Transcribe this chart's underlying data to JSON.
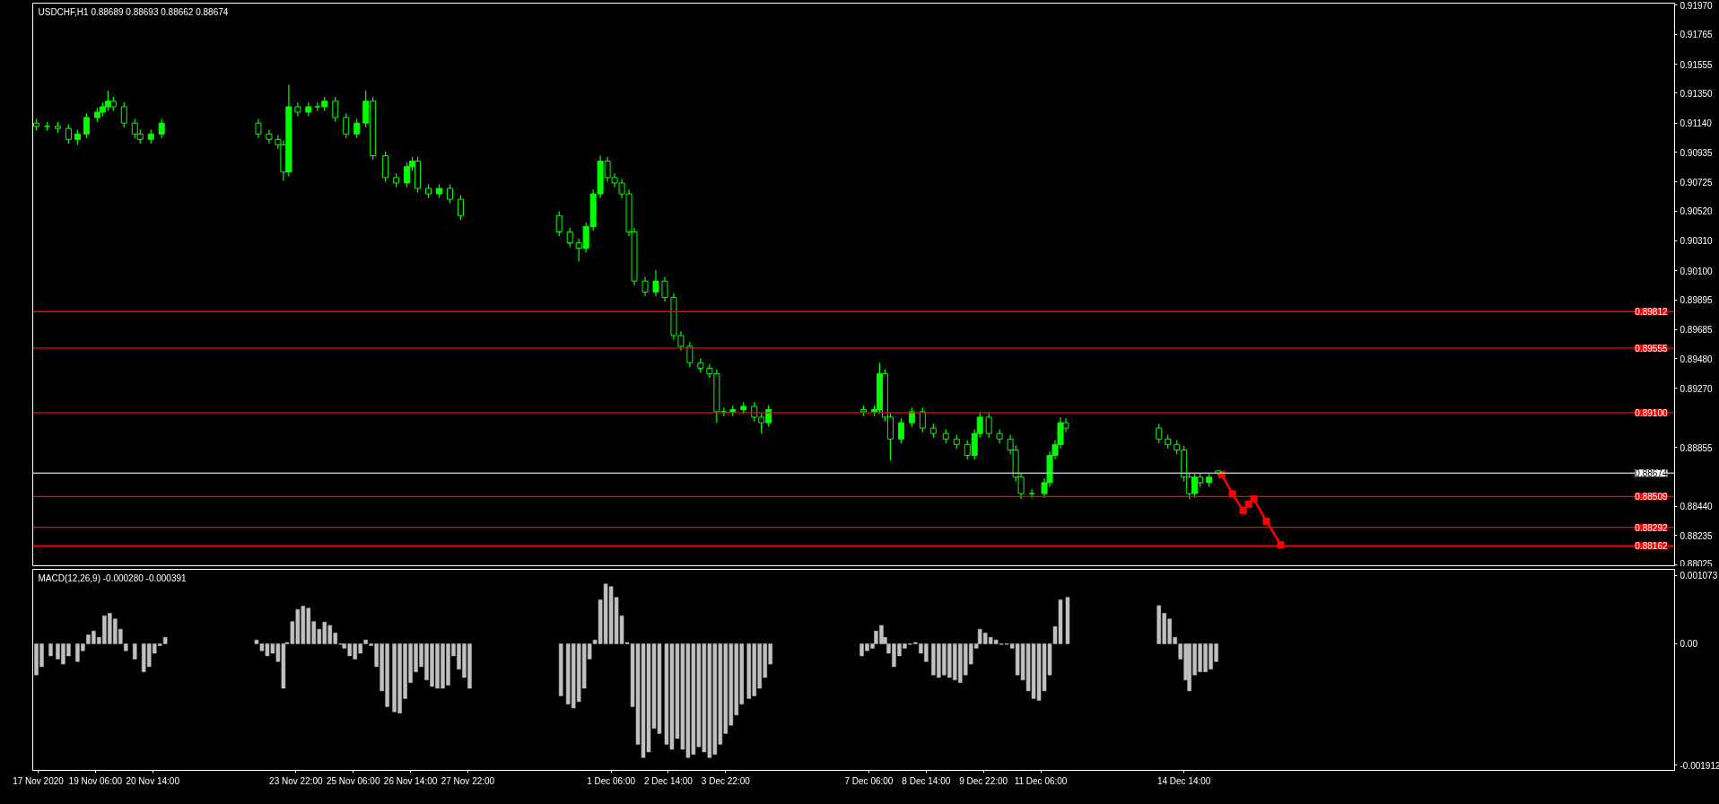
{
  "chart_data": [
    {
      "type": "candlestick",
      "title": "USDCHF,H1  0.88689 0.88693 0.88662 0.88674",
      "color": "#00ff00",
      "tick_labels": "y",
      "xlim": [
        "2020-11-17T19:00",
        "2020-12-26T00:00"
      ],
      "ylim": [
        0.88015,
        0.91985
      ],
      "yticks": [
        {
          "value": 0.9197,
          "label": "0.91970"
        },
        {
          "value": 0.91765,
          "label": "0.91765"
        },
        {
          "value": 0.91555,
          "label": "0.91555"
        },
        {
          "value": 0.9135,
          "label": "0.91350"
        },
        {
          "value": 0.9114,
          "label": "0.91140"
        },
        {
          "value": 0.90935,
          "label": "0.90935"
        },
        {
          "value": 0.90725,
          "label": "0.90725"
        },
        {
          "value": 0.9052,
          "label": "0.90520"
        },
        {
          "value": 0.9031,
          "label": "0.90310"
        },
        {
          "value": 0.901,
          "label": "0.90100"
        },
        {
          "value": 0.89895,
          "label": "0.89895"
        },
        {
          "value": 0.89685,
          "label": "0.89685"
        },
        {
          "value": 0.8948,
          "label": "0.89480"
        },
        {
          "value": 0.8927,
          "label": "0.89270"
        },
        {
          "value": 0.88855,
          "label": "0.88855"
        },
        {
          "value": 0.8844,
          "label": "0.88440"
        },
        {
          "value": 0.88235,
          "label": "0.88235"
        },
        {
          "value": 0.88025,
          "label": "0.88025"
        }
      ],
      "ref_lines": [
        {
          "axis": "y",
          "value": 0.89812,
          "label": "0.89812",
          "color": "#ff0000"
        },
        {
          "axis": "y",
          "value": 0.89555,
          "label": "0.89555",
          "color": "#ff0000"
        },
        {
          "axis": "y",
          "value": 0.891,
          "label": "0.89100",
          "color": "#ff0000"
        },
        {
          "axis": "y",
          "value": 0.88674,
          "label": "0.88674",
          "color": "#b0b8c0"
        },
        {
          "axis": "y",
          "value": 0.88509,
          "label": "0.88509",
          "color": "#ff0000"
        },
        {
          "axis": "y",
          "value": 0.88292,
          "label": "0.88292",
          "color": "#ff0000"
        },
        {
          "axis": "y",
          "value": 0.88162,
          "label": "0.88162",
          "color": "#ff0000"
        }
      ],
      "x": [
        "2020-11-17T21:00",
        "2020-11-18T03:00",
        "2020-11-18T09:00",
        "2020-11-18T15:00",
        "2020-11-18T20:00",
        "2020-11-19T01:00",
        "2020-11-19T07:00",
        "2020-11-19T10:00",
        "2020-11-19T13:00",
        "2020-11-19T16:00",
        "2020-11-19T22:00",
        "2020-11-20T04:00",
        "2020-11-20T07:00",
        "2020-11-20T13:00",
        "2020-11-20T19:00",
        "2020-11-23T01:00",
        "2020-11-23T07:00",
        "2020-11-23T12:00",
        "2020-11-23T15:00",
        "2020-11-23T18:00",
        "2020-11-23T23:00",
        "2020-11-24T05:00",
        "2020-11-24T10:00",
        "2020-11-24T14:00",
        "2020-11-24T20:00",
        "2020-11-25T02:00",
        "2020-11-25T08:00",
        "2020-11-25T13:00",
        "2020-11-25T17:00",
        "2020-11-26T00:00",
        "2020-11-26T06:00",
        "2020-11-26T12:00",
        "2020-11-26T15:00",
        "2020-11-26T18:00",
        "2020-11-27T00:00",
        "2020-11-27T06:00",
        "2020-11-27T12:00",
        "2020-11-27T18:00",
        "2020-11-30T01:00",
        "2020-11-30T07:00",
        "2020-11-30T12:00",
        "2020-11-30T16:00",
        "2020-11-30T20:00",
        "2020-12-01T00:00",
        "2020-12-01T04:00",
        "2020-12-01T08:00",
        "2020-12-01T12:00",
        "2020-12-01T16:00",
        "2020-12-01T19:00",
        "2020-12-02T01:00",
        "2020-12-02T07:00",
        "2020-12-02T12:00",
        "2020-12-02T17:00",
        "2020-12-02T21:00",
        "2020-12-03T02:00",
        "2020-12-03T08:00",
        "2020-12-03T13:00",
        "2020-12-03T17:00",
        "2020-12-03T21:00",
        "2020-12-04T02:00",
        "2020-12-04T08:00",
        "2020-12-04T14:00",
        "2020-12-04T18:00",
        "2020-12-04T22:00",
        "2020-12-07T03:00",
        "2020-12-07T09:00",
        "2020-12-07T12:00",
        "2020-12-07T15:00",
        "2020-12-07T18:00",
        "2020-12-08T00:00",
        "2020-12-08T06:00",
        "2020-12-08T12:00",
        "2020-12-08T18:00",
        "2020-12-09T01:00",
        "2020-12-09T07:00",
        "2020-12-09T13:00",
        "2020-12-09T17:00",
        "2020-12-09T20:00",
        "2020-12-10T01:00",
        "2020-12-10T07:00",
        "2020-12-10T13:00",
        "2020-12-10T16:00",
        "2020-12-10T19:00",
        "2020-12-11T01:00",
        "2020-12-11T08:00",
        "2020-12-11T11:00",
        "2020-12-11T14:00",
        "2020-12-11T17:00",
        "2020-12-11T20:00",
        "2020-12-14T00:00",
        "2020-12-14T05:00",
        "2020-12-14T10:00",
        "2020-12-14T14:00",
        "2020-12-14T17:00",
        "2020-12-14T20:00",
        "2020-12-14T23:00",
        "2020-12-15T04:00",
        "2020-12-15T09:00"
      ],
      "ohlc": [
        [
          0.9114,
          0.9117,
          0.91087,
          0.91117
        ],
        [
          0.91117,
          0.91147,
          0.91087,
          0.91117
        ],
        [
          0.91117,
          0.91147,
          0.91072,
          0.91102
        ],
        [
          0.91102,
          0.91132,
          0.90995,
          0.91025
        ],
        [
          0.91025,
          0.91093,
          0.90987,
          0.91063
        ],
        [
          0.91063,
          0.91209,
          0.91033,
          0.91179
        ],
        [
          0.91179,
          0.91247,
          0.91149,
          0.91217
        ],
        [
          0.91217,
          0.91285,
          0.91187,
          0.91255
        ],
        [
          0.91255,
          0.91371,
          0.91225,
          0.91294
        ],
        [
          0.91294,
          0.91324,
          0.91225,
          0.91255
        ],
        [
          0.91255,
          0.91285,
          0.9111,
          0.9114
        ],
        [
          0.9114,
          0.9117,
          0.91033,
          0.91063
        ],
        [
          0.91063,
          0.91093,
          0.90995,
          0.91025
        ],
        [
          0.91025,
          0.91093,
          0.90995,
          0.91063
        ],
        [
          0.91063,
          0.9117,
          0.91033,
          0.9114
        ],
        [
          0.9114,
          0.9117,
          0.91033,
          0.91063
        ],
        [
          0.91063,
          0.91093,
          0.90995,
          0.91025
        ],
        [
          0.91025,
          0.91055,
          0.90957,
          0.90987
        ],
        [
          0.90987,
          0.91017,
          0.90733,
          0.90795
        ],
        [
          0.90795,
          0.91409,
          0.90765,
          0.91255
        ],
        [
          0.91255,
          0.91285,
          0.91187,
          0.91217
        ],
        [
          0.91217,
          0.91285,
          0.91187,
          0.91255
        ],
        [
          0.91255,
          0.91285,
          0.91225,
          0.91255
        ],
        [
          0.91255,
          0.91324,
          0.91225,
          0.91294
        ],
        [
          0.91294,
          0.91324,
          0.91149,
          0.91179
        ],
        [
          0.91179,
          0.91209,
          0.91033,
          0.91063
        ],
        [
          0.91063,
          0.9117,
          0.91033,
          0.9114
        ],
        [
          0.9114,
          0.91371,
          0.9111,
          0.91294
        ],
        [
          0.91294,
          0.91324,
          0.9088,
          0.9091
        ],
        [
          0.9091,
          0.9094,
          0.90726,
          0.90756
        ],
        [
          0.90756,
          0.90786,
          0.90688,
          0.90718
        ],
        [
          0.90718,
          0.90863,
          0.90688,
          0.90833
        ],
        [
          0.90833,
          0.90902,
          0.90803,
          0.90872
        ],
        [
          0.90872,
          0.90902,
          0.9065,
          0.9068
        ],
        [
          0.9068,
          0.9071,
          0.90611,
          0.90641
        ],
        [
          0.90641,
          0.9071,
          0.90611,
          0.9068
        ],
        [
          0.9068,
          0.9071,
          0.90573,
          0.90603
        ],
        [
          0.90603,
          0.90633,
          0.90458,
          0.90488
        ],
        [
          0.90488,
          0.90518,
          0.90343,
          0.90373
        ],
        [
          0.90373,
          0.90403,
          0.90266,
          0.90296
        ],
        [
          0.90296,
          0.90326,
          0.90165,
          0.90258
        ],
        [
          0.90258,
          0.90441,
          0.90228,
          0.90411
        ],
        [
          0.90411,
          0.90671,
          0.90381,
          0.90641
        ],
        [
          0.90641,
          0.9091,
          0.90611,
          0.90872
        ],
        [
          0.90872,
          0.90902,
          0.90726,
          0.90756
        ],
        [
          0.90756,
          0.90786,
          0.90688,
          0.90718
        ],
        [
          0.90718,
          0.90748,
          0.90611,
          0.90641
        ],
        [
          0.90641,
          0.90671,
          0.90343,
          0.90373
        ],
        [
          0.90373,
          0.90403,
          0.89997,
          0.90027
        ],
        [
          0.90027,
          0.90057,
          0.8992,
          0.8995
        ],
        [
          0.8995,
          0.90104,
          0.8992,
          0.90027
        ],
        [
          0.90027,
          0.90057,
          0.89882,
          0.89912
        ],
        [
          0.89912,
          0.89942,
          0.89613,
          0.89643
        ],
        [
          0.89643,
          0.89673,
          0.89537,
          0.89567
        ],
        [
          0.89567,
          0.89597,
          0.89422,
          0.89452
        ],
        [
          0.89452,
          0.89482,
          0.89383,
          0.89413
        ],
        [
          0.89413,
          0.89443,
          0.89345,
          0.89375
        ],
        [
          0.89375,
          0.89405,
          0.89029,
          0.89106
        ],
        [
          0.89106,
          0.89136,
          0.89076,
          0.89106
        ],
        [
          0.89106,
          0.89151,
          0.89076,
          0.89121
        ],
        [
          0.89121,
          0.89174,
          0.89091,
          0.89144
        ],
        [
          0.89144,
          0.89174,
          0.89038,
          0.89068
        ],
        [
          0.89068,
          0.89098,
          0.88953,
          0.89029
        ],
        [
          0.89029,
          0.89151,
          0.88999,
          0.89121
        ],
        [
          0.89121,
          0.89151,
          0.89076,
          0.89106
        ],
        [
          0.89106,
          0.89151,
          0.89076,
          0.89121
        ],
        [
          0.89121,
          0.89452,
          0.89091,
          0.89375
        ],
        [
          0.89375,
          0.89405,
          0.89038,
          0.89068
        ],
        [
          0.89068,
          0.89098,
          0.88761,
          0.88914
        ],
        [
          0.88914,
          0.89059,
          0.88884,
          0.89029
        ],
        [
          0.89029,
          0.89136,
          0.88999,
          0.89106
        ],
        [
          0.89106,
          0.89136,
          0.88961,
          0.88991
        ],
        [
          0.88991,
          0.89021,
          0.88923,
          0.88953
        ],
        [
          0.88953,
          0.88983,
          0.88884,
          0.88914
        ],
        [
          0.88914,
          0.88944,
          0.88846,
          0.88876
        ],
        [
          0.88876,
          0.88906,
          0.88769,
          0.88799
        ],
        [
          0.88799,
          0.88983,
          0.88769,
          0.88953
        ],
        [
          0.88953,
          0.89106,
          0.88923,
          0.89068
        ],
        [
          0.89068,
          0.89098,
          0.88923,
          0.88953
        ],
        [
          0.88953,
          0.88983,
          0.88884,
          0.88914
        ],
        [
          0.88914,
          0.88944,
          0.88807,
          0.88837
        ],
        [
          0.88837,
          0.88867,
          0.88616,
          0.88646
        ],
        [
          0.88646,
          0.88676,
          0.88492,
          0.8853
        ],
        [
          0.8853,
          0.8856,
          0.885,
          0.8853
        ],
        [
          0.8853,
          0.88637,
          0.885,
          0.88607
        ],
        [
          0.88607,
          0.88829,
          0.88577,
          0.88799
        ],
        [
          0.88799,
          0.88906,
          0.88769,
          0.88876
        ],
        [
          0.88876,
          0.89068,
          0.88846,
          0.89029
        ],
        [
          0.89029,
          0.89059,
          0.88961,
          0.88991
        ],
        [
          0.88991,
          0.89021,
          0.88884,
          0.88914
        ],
        [
          0.88914,
          0.88944,
          0.88846,
          0.88876
        ],
        [
          0.88876,
          0.88906,
          0.88807,
          0.88837
        ],
        [
          0.88837,
          0.88867,
          0.88616,
          0.88646
        ],
        [
          0.88646,
          0.88676,
          0.88492,
          0.8853
        ],
        [
          0.8853,
          0.88676,
          0.885,
          0.88646
        ],
        [
          0.88646,
          0.88676,
          0.88577,
          0.88607
        ],
        [
          0.88607,
          0.88676,
          0.88577,
          0.88646
        ],
        [
          0.88689,
          0.88693,
          0.88662,
          0.88674
        ]
      ],
      "series": [
        {
          "type": "line",
          "color": "#ff0000",
          "marker": "square",
          "x": [
            "2020-12-15T11:00",
            "2020-12-15T17:00",
            "2020-12-15T23:00",
            "2020-12-16T02:00",
            "2020-12-16T05:00",
            "2020-12-16T12:00",
            "2020-12-16T20:00"
          ],
          "values": [
            0.88665,
            0.88528,
            0.88411,
            0.88454,
            0.88492,
            0.88335,
            0.8817
          ]
        }
      ]
    },
    {
      "type": "bar",
      "title": "MACD(12,26,9) -0.000280 -0.000391",
      "color": "#c0c0c0",
      "xlim": [
        "2020-11-17T19:00",
        "2020-12-26T00:00"
      ],
      "xticks": [
        {
          "value": "2020-11-17T22:00",
          "label": "17 Nov 2020"
        },
        {
          "value": "2020-11-19T06:00",
          "label": "19 Nov 06:00"
        },
        {
          "value": "2020-11-20T14:00",
          "label": "20 Nov 14:00"
        },
        {
          "value": "2020-11-23T22:00",
          "label": "23 Nov 22:00"
        },
        {
          "value": "2020-11-25T06:00",
          "label": "25 Nov 06:00"
        },
        {
          "value": "2020-11-26T14:00",
          "label": "26 Nov 14:00"
        },
        {
          "value": "2020-11-27T22:00",
          "label": "27 Nov 22:00"
        },
        {
          "value": "2020-12-01T06:00",
          "label": "1 Dec 06:00"
        },
        {
          "value": "2020-12-02T14:00",
          "label": "2 Dec 14:00"
        },
        {
          "value": "2020-12-03T22:00",
          "label": "3 Dec 22:00"
        },
        {
          "value": "2020-12-07T06:00",
          "label": "7 Dec 06:00"
        },
        {
          "value": "2020-12-08T14:00",
          "label": "8 Dec 14:00"
        },
        {
          "value": "2020-12-09T22:00",
          "label": "9 Dec 22:00"
        },
        {
          "value": "2020-12-11T06:00",
          "label": "11 Dec 06:00"
        },
        {
          "value": "2020-12-14T14:00",
          "label": "14 Dec 14:00"
        }
      ],
      "ylim": [
        -0.00199,
        0.00117
      ],
      "yticks": [
        0.001073,
        {
          "value": 0,
          "label": "0.00"
        },
        -0.001912
      ],
      "x": [
        "2020-11-17T21:00",
        "2020-11-18T00:00",
        "2020-11-18T05:00",
        "2020-11-18T09:00",
        "2020-11-18T12:00",
        "2020-11-18T15:00",
        "2020-11-18T20:00",
        "2020-11-18T23:00",
        "2020-11-19T02:00",
        "2020-11-19T05:00",
        "2020-11-19T08:00",
        "2020-11-19T11:00",
        "2020-11-19T14:00",
        "2020-11-19T17:00",
        "2020-11-19T20:00",
        "2020-11-19T23:00",
        "2020-11-20T04:00",
        "2020-11-20T09:00",
        "2020-11-20T12:00",
        "2020-11-20T15:00",
        "2020-11-20T18:00",
        "2020-11-20T21:00",
        "2020-11-23T00:00",
        "2020-11-23T03:00",
        "2020-11-23T06:00",
        "2020-11-23T09:00",
        "2020-11-23T12:00",
        "2020-11-23T15:00",
        "2020-11-23T17:00",
        "2020-11-23T20:00",
        "2020-11-23T23:00",
        "2020-11-24T02:00",
        "2020-11-24T05:00",
        "2020-11-24T08:00",
        "2020-11-24T11:00",
        "2020-11-24T14:00",
        "2020-11-24T17:00",
        "2020-11-24T20:00",
        "2020-11-24T23:00",
        "2020-11-25T01:00",
        "2020-11-25T04:00",
        "2020-11-25T07:00",
        "2020-11-25T10:00",
        "2020-11-25T13:00",
        "2020-11-25T16:00",
        "2020-11-25T19:00",
        "2020-11-25T22:00",
        "2020-11-26T01:00",
        "2020-11-26T05:00",
        "2020-11-26T08:00",
        "2020-11-26T11:00",
        "2020-11-26T14:00",
        "2020-11-26T17:00",
        "2020-11-26T20:00",
        "2020-11-26T23:00",
        "2020-11-27T02:00",
        "2020-11-27T05:00",
        "2020-11-27T08:00",
        "2020-11-27T11:00",
        "2020-11-27T14:00",
        "2020-11-27T17:00",
        "2020-11-27T20:00",
        "2020-11-27T23:00",
        "2020-11-30T02:00",
        "2020-11-30T06:00",
        "2020-11-30T09:00",
        "2020-11-30T12:00",
        "2020-11-30T15:00",
        "2020-11-30T18:00",
        "2020-11-30T21:00",
        "2020-12-01T00:00",
        "2020-12-01T03:00",
        "2020-12-01T06:00",
        "2020-12-01T09:00",
        "2020-12-01T12:00",
        "2020-12-01T15:00",
        "2020-12-01T18:00",
        "2020-12-01T21:00",
        "2020-12-02T00:00",
        "2020-12-02T03:00",
        "2020-12-02T06:00",
        "2020-12-02T09:00",
        "2020-12-02T13:00",
        "2020-12-02T16:00",
        "2020-12-02T19:00",
        "2020-12-02T22:00",
        "2020-12-03T01:00",
        "2020-12-03T04:00",
        "2020-12-03T07:00",
        "2020-12-03T10:00",
        "2020-12-03T13:00",
        "2020-12-03T16:00",
        "2020-12-03T19:00",
        "2020-12-03T22:00",
        "2020-12-04T01:00",
        "2020-12-04T04:00",
        "2020-12-04T07:00",
        "2020-12-04T11:00",
        "2020-12-04T14:00",
        "2020-12-04T17:00",
        "2020-12-04T20:00",
        "2020-12-04T23:00",
        "2020-12-07T02:00",
        "2020-12-07T05:00",
        "2020-12-07T08:00",
        "2020-12-07T10:00",
        "2020-12-07T13:00",
        "2020-12-07T15:00",
        "2020-12-07T17:00",
        "2020-12-07T20:00",
        "2020-12-07T23:00",
        "2020-12-08T02:00",
        "2020-12-08T05:00",
        "2020-12-08T08:00",
        "2020-12-08T11:00",
        "2020-12-08T14:00",
        "2020-12-08T18:00",
        "2020-12-08T21:00",
        "2020-12-09T00:00",
        "2020-12-09T03:00",
        "2020-12-09T06:00",
        "2020-12-09T09:00",
        "2020-12-09T12:00",
        "2020-12-09T15:00",
        "2020-12-09T18:00",
        "2020-12-09T20:00",
        "2020-12-09T23:00",
        "2020-12-10T02:00",
        "2020-12-10T05:00",
        "2020-12-10T08:00",
        "2020-12-10T11:00",
        "2020-12-10T14:00",
        "2020-12-10T17:00",
        "2020-12-10T20:00",
        "2020-12-10T23:00",
        "2020-12-11T02:00",
        "2020-12-11T05:00",
        "2020-12-11T08:00",
        "2020-12-11T11:00",
        "2020-12-11T14:00",
        "2020-12-11T17:00",
        "2020-12-11T21:00",
        "2020-12-14T00:00",
        "2020-12-14T03:00",
        "2020-12-14T06:00",
        "2020-12-14T09:00",
        "2020-12-14T12:00",
        "2020-12-14T15:00",
        "2020-12-14T17:00",
        "2020-12-14T20:00",
        "2020-12-14T23:00",
        "2020-12-15T02:00",
        "2020-12-15T05:00",
        "2020-12-15T08:00"
      ],
      "values": [
        -0.00049,
        -0.00036,
        -0.00019,
        -0.00024,
        -0.00032,
        -0.00019,
        -0.00028,
        -0.00011,
        0.00014,
        0.0002,
        0.0001,
        0.00044,
        0.00048,
        0.00039,
        0.00023,
        -0.00011,
        -0.00024,
        -0.00044,
        -0.00036,
        -0.00015,
        -3e-05,
        0.0001,
        6e-05,
        -0.00011,
        -0.00019,
        -0.00015,
        -0.00028,
        -0.0007,
        2e-05,
        0.00035,
        0.00054,
        0.00059,
        0.00056,
        0.00035,
        0.00023,
        0.00034,
        0.00029,
        0.00017,
        -1e-05,
        -7e-05,
        -0.00019,
        -0.00024,
        -0.00015,
        6e-05,
        -3e-05,
        -0.00036,
        -0.00074,
        -0.00099,
        -0.00107,
        -0.00109,
        -0.00086,
        -0.00061,
        -0.00044,
        -0.00036,
        -0.00057,
        -0.00067,
        -0.0007,
        -0.0007,
        -0.00065,
        -0.00019,
        -0.0004,
        -0.00053,
        -0.0007,
        -0.00082,
        -0.00095,
        -0.00101,
        -0.00091,
        -0.0007,
        -0.00024,
        6e-05,
        0.00069,
        0.00094,
        0.0009,
        0.00073,
        0.00044,
        2e-05,
        -0.00099,
        -0.00158,
        -0.00179,
        -0.0017,
        -0.00133,
        -0.00141,
        -0.00158,
        -0.00166,
        -0.00149,
        -0.00166,
        -0.00179,
        -0.00174,
        -0.00162,
        -0.0017,
        -0.00179,
        -0.00174,
        -0.00158,
        -0.00141,
        -0.00128,
        -0.00112,
        -0.00095,
        -0.00086,
        -0.00082,
        -0.0007,
        -0.00053,
        -0.00032,
        -0.00019,
        -0.00011,
        -7e-05,
        0.0002,
        0.00029,
        0.0001,
        -0.00015,
        -0.00036,
        -0.00019,
        -7e-05,
        -1e-05,
        2e-05,
        -0.00015,
        -0.00028,
        -0.00049,
        -0.00053,
        -0.00049,
        -0.00053,
        -0.00057,
        -0.00061,
        -0.00049,
        -0.00032,
        -7e-05,
        0.00023,
        0.00017,
        0.0001,
        6e-05,
        -1e-05,
        -1e-05,
        -7e-05,
        -0.00049,
        -0.00057,
        -0.00074,
        -0.00086,
        -0.00089,
        -0.00074,
        -0.00049,
        0.00027,
        0.00069,
        0.00073,
        0.0006,
        0.00048,
        0.00039,
        0.0001,
        -0.00024,
        -0.00057,
        -0.00074,
        -0.00049,
        -0.00044,
        -0.00044,
        -0.0004,
        -0.00028
      ]
    }
  ]
}
